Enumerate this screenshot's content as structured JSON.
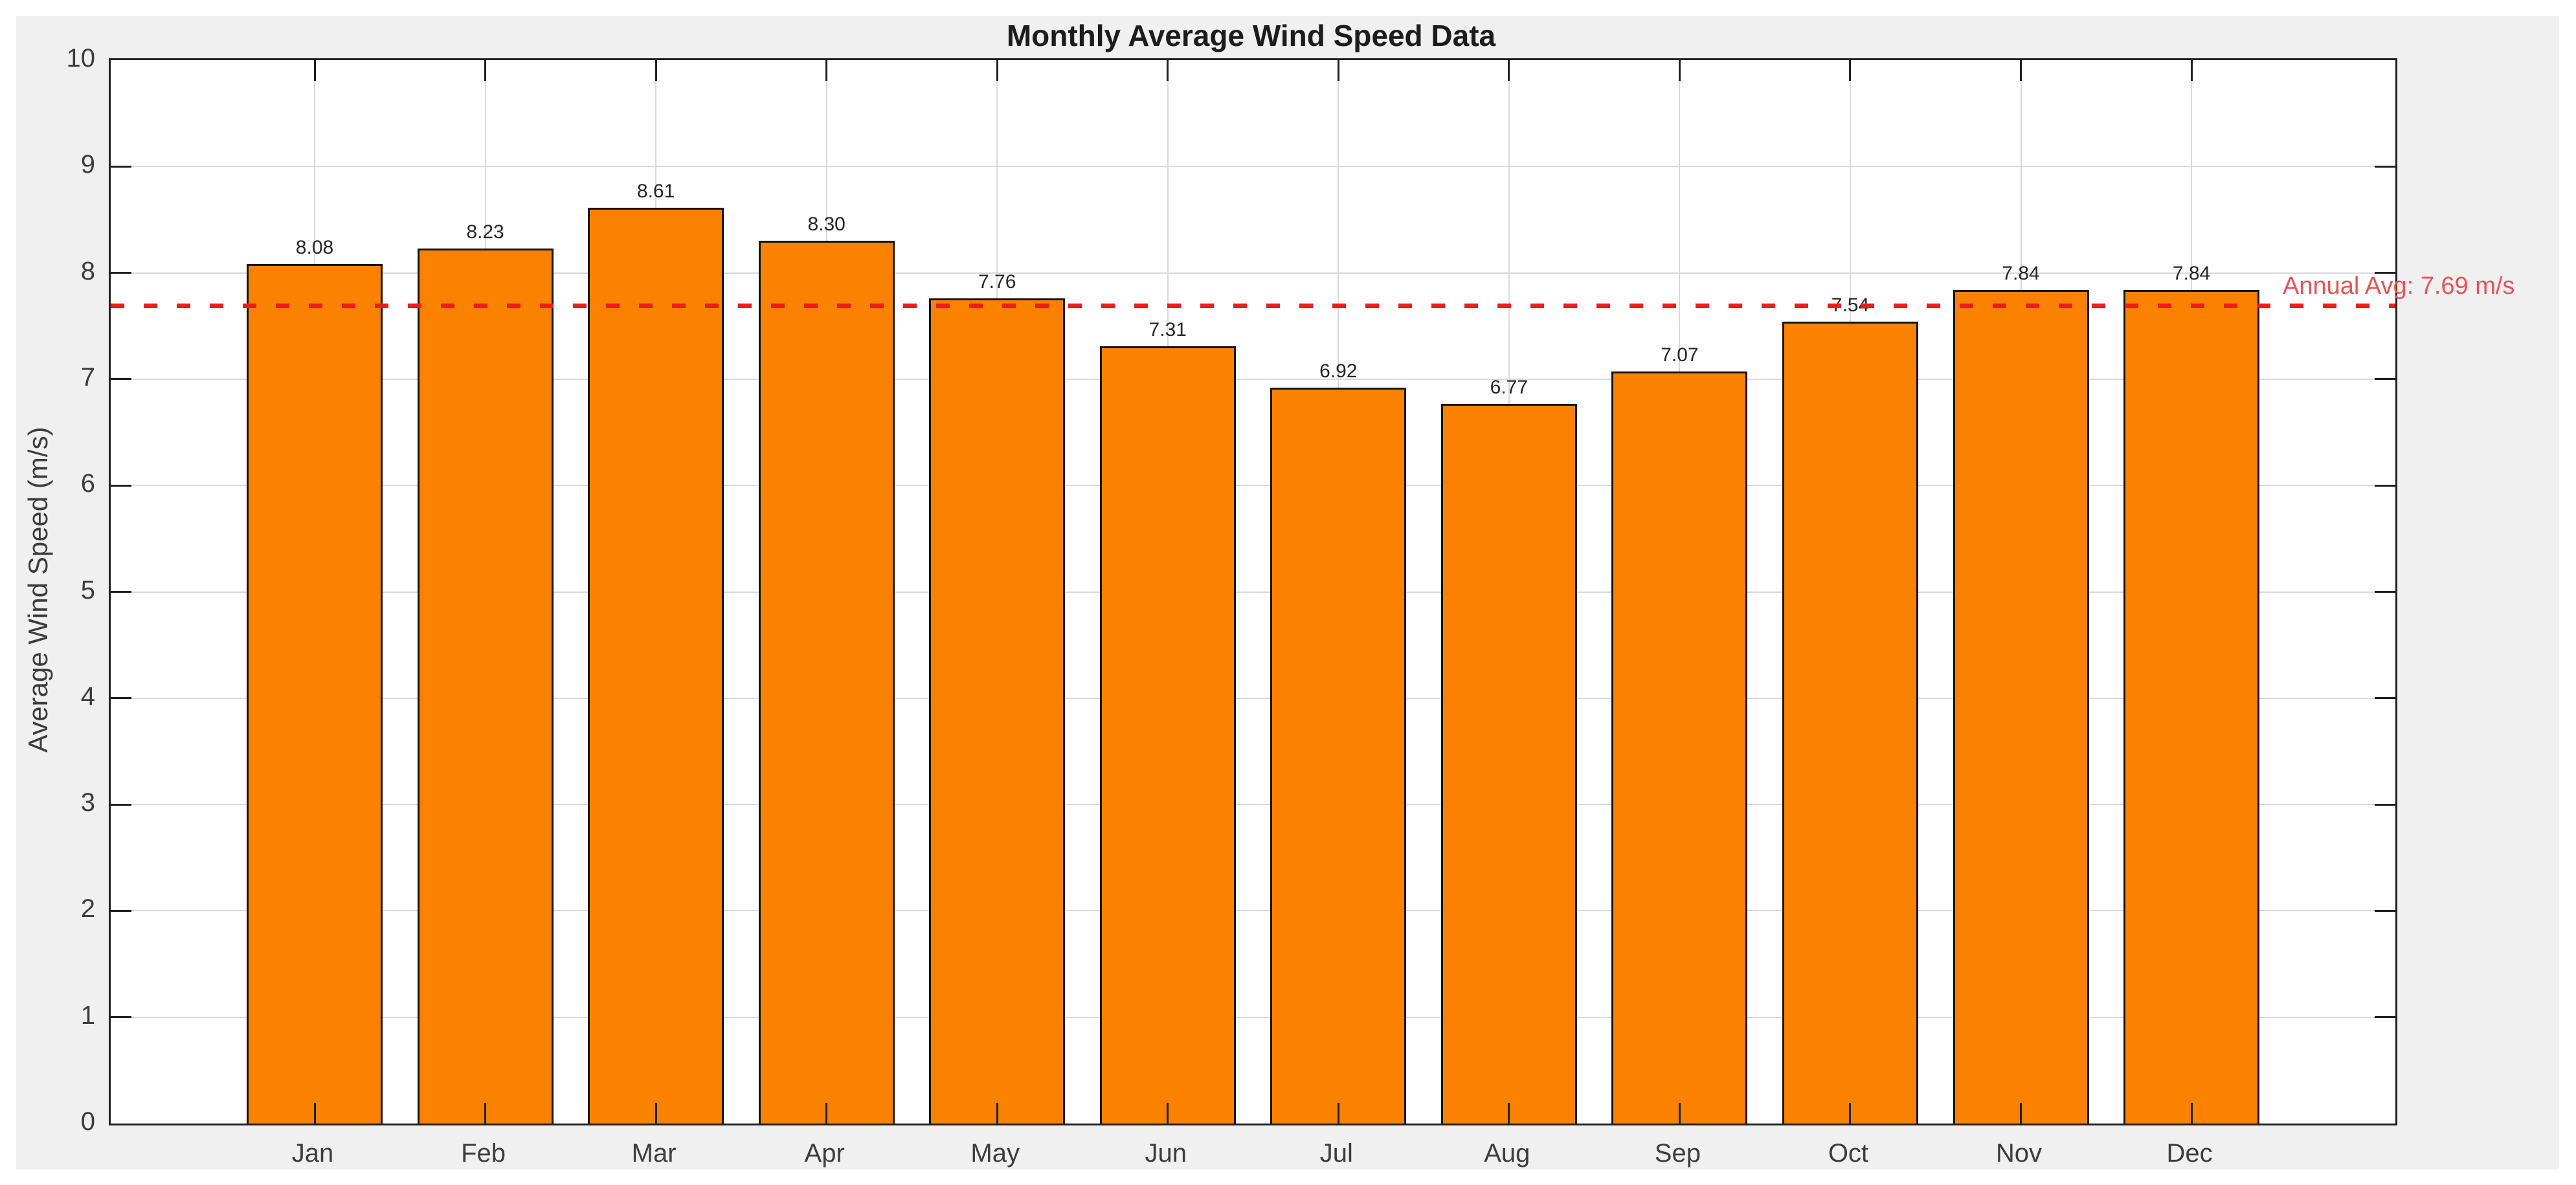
{
  "page": {
    "background": "#ffffff",
    "figure_background": "#f0f0f0",
    "plot_background": "#ffffff"
  },
  "chart_data": {
    "type": "bar",
    "title": "Monthly Average Wind Speed Data",
    "xlabel": "",
    "ylabel": "Average Wind Speed (m/s)",
    "categories": [
      "Jan",
      "Feb",
      "Mar",
      "Apr",
      "May",
      "Jun",
      "Jul",
      "Aug",
      "Sep",
      "Oct",
      "Nov",
      "Dec"
    ],
    "values": [
      8.08,
      8.23,
      8.61,
      8.3,
      7.76,
      7.31,
      6.92,
      6.77,
      7.07,
      7.54,
      7.84,
      7.84
    ],
    "value_labels": [
      "8.08",
      "8.23",
      "8.61",
      "8.30",
      "7.76",
      "7.31",
      "6.92",
      "6.77",
      "7.07",
      "7.54",
      "7.84",
      "7.84"
    ],
    "ylim": [
      0,
      10
    ],
    "yticks": [
      0,
      1,
      2,
      3,
      4,
      5,
      6,
      7,
      8,
      9,
      10
    ],
    "grid": true,
    "legend": "none",
    "colors": {
      "bar_fill": "#fa8200",
      "bar_edge": "#141414",
      "grid_line": "#d9d9d9",
      "axis": "#202020",
      "tick_label": "#3c3c3c",
      "title": "#1c1c1c",
      "value_label": "#262626"
    },
    "reference_line": {
      "value": 7.69,
      "label": "Annual Avg: 7.69 m/s",
      "style": "dashed",
      "line_color": "#ee1c1c",
      "label_color": "#e65454"
    }
  }
}
